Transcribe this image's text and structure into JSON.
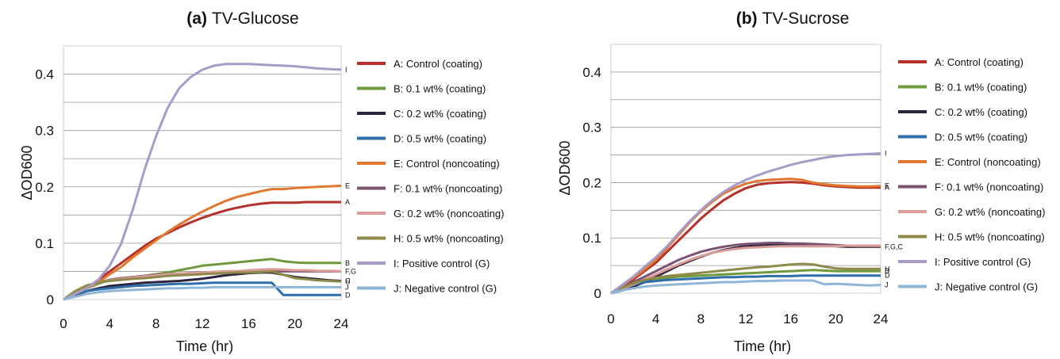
{
  "chart_data": [
    {
      "type": "line",
      "panel_label": "(a)",
      "title": "TV-Glucose",
      "xlabel": "Time (hr)",
      "ylabel": "ΔOD600",
      "xlim": [
        0,
        24
      ],
      "ylim": [
        0,
        0.45
      ],
      "xticks": [
        "0",
        "4",
        "8",
        "12",
        "16",
        "20",
        "24"
      ],
      "yticks": [
        "0",
        "0.1",
        "0.2",
        "0.3",
        "0.4"
      ],
      "ytick_values": [
        0,
        0.1,
        0.2,
        0.3,
        0.4
      ],
      "grid": "horizontal",
      "legend_position": "right",
      "x": [
        0,
        1,
        2,
        3,
        4,
        5,
        6,
        7,
        8,
        9,
        10,
        11,
        12,
        13,
        14,
        15,
        16,
        17,
        18,
        19,
        20,
        21,
        22,
        23,
        24
      ],
      "series": [
        {
          "name": "A: Control (coating)",
          "end_label": "A",
          "color": "#b5302b",
          "values": [
            0,
            0.01,
            0.02,
            0.035,
            0.05,
            0.065,
            0.08,
            0.095,
            0.108,
            0.118,
            0.128,
            0.137,
            0.145,
            0.152,
            0.158,
            0.163,
            0.167,
            0.17,
            0.172,
            0.172,
            0.172,
            0.173,
            0.173,
            0.173,
            0.173
          ]
        },
        {
          "name": "B: 0.1 wt% (coating)",
          "end_label": "B",
          "color": "#6f9a3b",
          "values": [
            0,
            0.01,
            0.02,
            0.028,
            0.035,
            0.038,
            0.04,
            0.042,
            0.045,
            0.048,
            0.052,
            0.056,
            0.06,
            0.062,
            0.064,
            0.066,
            0.068,
            0.07,
            0.072,
            0.068,
            0.066,
            0.065,
            0.065,
            0.065,
            0.065
          ]
        },
        {
          "name": "C: 0.2 wt% (coating)",
          "end_label": "C",
          "color": "#2d2440",
          "values": [
            0,
            0.008,
            0.015,
            0.02,
            0.024,
            0.026,
            0.028,
            0.03,
            0.031,
            0.032,
            0.033,
            0.035,
            0.037,
            0.04,
            0.043,
            0.045,
            0.047,
            0.048,
            0.048,
            0.044,
            0.04,
            0.038,
            0.036,
            0.034,
            0.033
          ]
        },
        {
          "name": "D: 0.5 wt% (coating)",
          "end_label": "D",
          "color": "#2f6fab",
          "values": [
            0,
            0.01,
            0.015,
            0.018,
            0.02,
            0.022,
            0.024,
            0.025,
            0.026,
            0.027,
            0.028,
            0.028,
            0.029,
            0.03,
            0.03,
            0.03,
            0.03,
            0.03,
            0.03,
            0.008,
            0.008,
            0.008,
            0.008,
            0.008,
            0.008
          ]
        },
        {
          "name": "E: Control (noncoating)",
          "end_label": "E",
          "color": "#e0782f",
          "values": [
            0,
            0.01,
            0.02,
            0.03,
            0.045,
            0.058,
            0.075,
            0.09,
            0.105,
            0.12,
            0.133,
            0.145,
            0.156,
            0.166,
            0.175,
            0.182,
            0.187,
            0.192,
            0.196,
            0.196,
            0.198,
            0.199,
            0.2,
            0.201,
            0.202
          ]
        },
        {
          "name": "F: 0.1 wt% (noncoating)",
          "end_label": "F,G",
          "color": "#7b5471",
          "values": [
            0,
            0.012,
            0.022,
            0.03,
            0.035,
            0.038,
            0.04,
            0.042,
            0.044,
            0.045,
            0.046,
            0.047,
            0.048,
            0.049,
            0.05,
            0.05,
            0.05,
            0.05,
            0.05,
            0.05,
            0.05,
            0.05,
            0.05,
            0.05,
            0.05
          ]
        },
        {
          "name": "G: 0.2 wt% (noncoating)",
          "end_label": "",
          "color": "#d99c96",
          "values": [
            0,
            0.012,
            0.022,
            0.03,
            0.034,
            0.037,
            0.039,
            0.041,
            0.043,
            0.045,
            0.046,
            0.047,
            0.048,
            0.049,
            0.05,
            0.05,
            0.052,
            0.053,
            0.054,
            0.053,
            0.052,
            0.052,
            0.051,
            0.051,
            0.05
          ]
        },
        {
          "name": "H: 0.5 wt% (noncoating)",
          "end_label": "H",
          "color": "#8d8a4a",
          "values": [
            0,
            0.015,
            0.025,
            0.03,
            0.033,
            0.035,
            0.037,
            0.038,
            0.04,
            0.042,
            0.043,
            0.044,
            0.045,
            0.046,
            0.047,
            0.048,
            0.048,
            0.049,
            0.05,
            0.044,
            0.038,
            0.036,
            0.034,
            0.033,
            0.032
          ]
        },
        {
          "name": "I: Positive control (G)",
          "end_label": "I",
          "color": "#a89bc8",
          "values": [
            0,
            0.01,
            0.02,
            0.035,
            0.06,
            0.1,
            0.16,
            0.23,
            0.29,
            0.34,
            0.375,
            0.395,
            0.408,
            0.415,
            0.418,
            0.418,
            0.418,
            0.417,
            0.416,
            0.415,
            0.414,
            0.412,
            0.41,
            0.409,
            0.408
          ]
        },
        {
          "name": "J: Negative control (G)",
          "end_label": "J",
          "color": "#8fb6d8",
          "values": [
            0,
            0.005,
            0.01,
            0.013,
            0.015,
            0.016,
            0.017,
            0.018,
            0.019,
            0.02,
            0.02,
            0.021,
            0.021,
            0.022,
            0.022,
            0.022,
            0.022,
            0.022,
            0.022,
            0.022,
            0.022,
            0.022,
            0.022,
            0.022,
            0.022
          ]
        }
      ]
    },
    {
      "type": "line",
      "panel_label": "(b)",
      "title": "TV-Sucrose",
      "xlabel": "Time (hr)",
      "ylabel": "ΔOD600",
      "xlim": [
        0,
        24
      ],
      "ylim": [
        0,
        0.45
      ],
      "xticks": [
        "0",
        "4",
        "8",
        "12",
        "16",
        "20",
        "24"
      ],
      "yticks": [
        "0",
        "0.1",
        "0.2",
        "0.3",
        "0.4"
      ],
      "ytick_values": [
        0,
        0.1,
        0.2,
        0.3,
        0.4
      ],
      "grid": "horizontal",
      "legend_position": "right",
      "x": [
        0,
        1,
        2,
        3,
        4,
        5,
        6,
        7,
        8,
        9,
        10,
        11,
        12,
        13,
        14,
        15,
        16,
        17,
        18,
        19,
        20,
        21,
        22,
        23,
        24
      ],
      "series": [
        {
          "name": "A: Control (coating)",
          "end_label": "A",
          "color": "#b5302b",
          "values": [
            0,
            0.012,
            0.025,
            0.04,
            0.055,
            0.075,
            0.095,
            0.115,
            0.135,
            0.152,
            0.168,
            0.18,
            0.19,
            0.196,
            0.199,
            0.2,
            0.201,
            0.2,
            0.198,
            0.195,
            0.193,
            0.192,
            0.191,
            0.191,
            0.191
          ]
        },
        {
          "name": "B: 0.1 wt% (coating)",
          "end_label": "B",
          "color": "#6f9a3b",
          "values": [
            0,
            0.008,
            0.016,
            0.022,
            0.026,
            0.028,
            0.03,
            0.031,
            0.032,
            0.033,
            0.034,
            0.035,
            0.036,
            0.037,
            0.038,
            0.039,
            0.04,
            0.041,
            0.042,
            0.041,
            0.04,
            0.04,
            0.04,
            0.04,
            0.04
          ]
        },
        {
          "name": "C: 0.2 wt% (coating)",
          "end_label": "F,G,C",
          "color": "#2d2440",
          "values": [
            0,
            0.005,
            0.012,
            0.02,
            0.03,
            0.04,
            0.05,
            0.058,
            0.066,
            0.073,
            0.078,
            0.082,
            0.085,
            0.086,
            0.087,
            0.087,
            0.087,
            0.087,
            0.087,
            0.086,
            0.085,
            0.084,
            0.084,
            0.084,
            0.084
          ]
        },
        {
          "name": "D: 0.5 wt% (coating)",
          "end_label": "D",
          "color": "#2f6fab",
          "values": [
            0,
            0.008,
            0.015,
            0.02,
            0.022,
            0.024,
            0.025,
            0.026,
            0.027,
            0.028,
            0.029,
            0.029,
            0.03,
            0.03,
            0.031,
            0.031,
            0.031,
            0.032,
            0.032,
            0.032,
            0.032,
            0.032,
            0.032,
            0.032,
            0.032
          ]
        },
        {
          "name": "E: Control (noncoating)",
          "end_label": "E",
          "color": "#e0782f",
          "values": [
            0,
            0.014,
            0.028,
            0.043,
            0.06,
            0.082,
            0.105,
            0.128,
            0.148,
            0.165,
            0.18,
            0.19,
            0.198,
            0.203,
            0.205,
            0.206,
            0.207,
            0.205,
            0.2,
            0.197,
            0.195,
            0.194,
            0.193,
            0.193,
            0.194
          ]
        },
        {
          "name": "F: 0.1 wt% (noncoating)",
          "end_label": "",
          "color": "#7b5471",
          "values": [
            0,
            0.01,
            0.02,
            0.03,
            0.04,
            0.05,
            0.06,
            0.068,
            0.075,
            0.08,
            0.084,
            0.087,
            0.089,
            0.09,
            0.091,
            0.091,
            0.09,
            0.09,
            0.089,
            0.088,
            0.087,
            0.086,
            0.085,
            0.085,
            0.085
          ]
        },
        {
          "name": "G: 0.2 wt% (noncoating)",
          "end_label": "",
          "color": "#d99c96",
          "values": [
            0,
            0.008,
            0.016,
            0.025,
            0.034,
            0.043,
            0.052,
            0.06,
            0.067,
            0.073,
            0.077,
            0.08,
            0.082,
            0.083,
            0.084,
            0.085,
            0.085,
            0.085,
            0.085,
            0.085,
            0.085,
            0.086,
            0.086,
            0.086,
            0.086
          ]
        },
        {
          "name": "H: 0.5 wt% (noncoating)",
          "end_label": "H",
          "color": "#8d8a4a",
          "values": [
            0,
            0.01,
            0.018,
            0.024,
            0.028,
            0.031,
            0.033,
            0.035,
            0.037,
            0.039,
            0.041,
            0.043,
            0.045,
            0.047,
            0.048,
            0.05,
            0.052,
            0.053,
            0.052,
            0.048,
            0.045,
            0.044,
            0.044,
            0.044,
            0.044
          ]
        },
        {
          "name": "I: Positive control (G)",
          "end_label": "I",
          "color": "#a89bc8",
          "values": [
            0,
            0.015,
            0.03,
            0.048,
            0.065,
            0.085,
            0.108,
            0.13,
            0.15,
            0.168,
            0.183,
            0.195,
            0.205,
            0.213,
            0.22,
            0.226,
            0.232,
            0.237,
            0.241,
            0.245,
            0.248,
            0.25,
            0.251,
            0.252,
            0.253
          ]
        },
        {
          "name": "J: Negative control (G)",
          "end_label": "J",
          "color": "#8fb6d8",
          "values": [
            0,
            0.005,
            0.009,
            0.012,
            0.014,
            0.015,
            0.016,
            0.017,
            0.018,
            0.019,
            0.02,
            0.02,
            0.021,
            0.022,
            0.022,
            0.023,
            0.023,
            0.023,
            0.023,
            0.016,
            0.017,
            0.016,
            0.015,
            0.014,
            0.015
          ]
        }
      ]
    }
  ]
}
